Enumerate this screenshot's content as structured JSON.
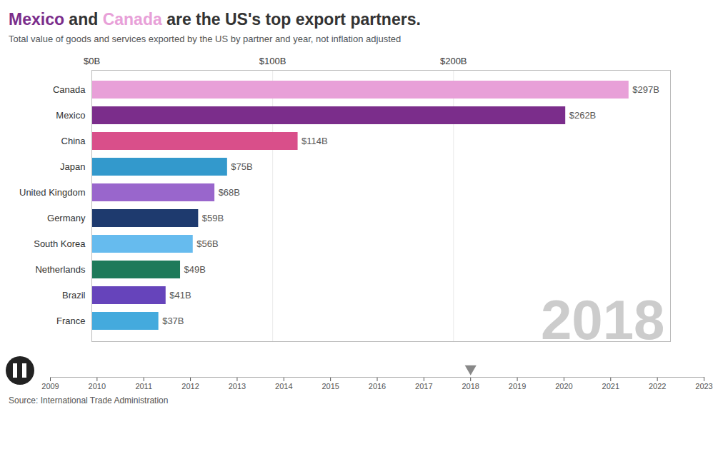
{
  "chart_data": [
    {
      "type": "bar",
      "orientation": "horizontal",
      "title": "Mexico and Canada are the US's top export partners.",
      "subtitle": "Total value of goods and services exported by the US by partner and year, not inflation adjusted",
      "categories": [
        "Canada",
        "Mexico",
        "China",
        "Japan",
        "United Kingdom",
        "Germany",
        "South Korea",
        "Netherlands",
        "Brazil",
        "France"
      ],
      "values": [
        297,
        262,
        114,
        75,
        68,
        59,
        56,
        49,
        41,
        37
      ],
      "value_labels": [
        "$297B",
        "$262B",
        "$114B",
        "$75B",
        "$68B",
        "$59B",
        "$56B",
        "$49B",
        "$41B",
        "$37B"
      ],
      "colors": [
        "#e8a0d8",
        "#7b2d8b",
        "#d94f8a",
        "#3399cc",
        "#9966cc",
        "#1e3a6e",
        "#66bbee",
        "#1e7a5a",
        "#6644bb",
        "#44aadd"
      ],
      "xlim": [
        0,
        320
      ],
      "xticks": [
        {
          "value": 0,
          "label": "$0B"
        },
        {
          "value": 100,
          "label": "$100B"
        },
        {
          "value": 200,
          "label": "$200B"
        }
      ],
      "grid": true,
      "data_labels": true,
      "annotations": [
        "2018",
        "Source: International Trade Administration"
      ]
    },
    {
      "type": "timeline",
      "x": [
        2018
      ],
      "xlim": [
        2009,
        2023
      ],
      "xticks": [
        2009,
        2010,
        2011,
        2012,
        2013,
        2014,
        2015,
        2016,
        2017,
        2018,
        2019,
        2020,
        2021,
        2022,
        2023
      ]
    }
  ]
}
